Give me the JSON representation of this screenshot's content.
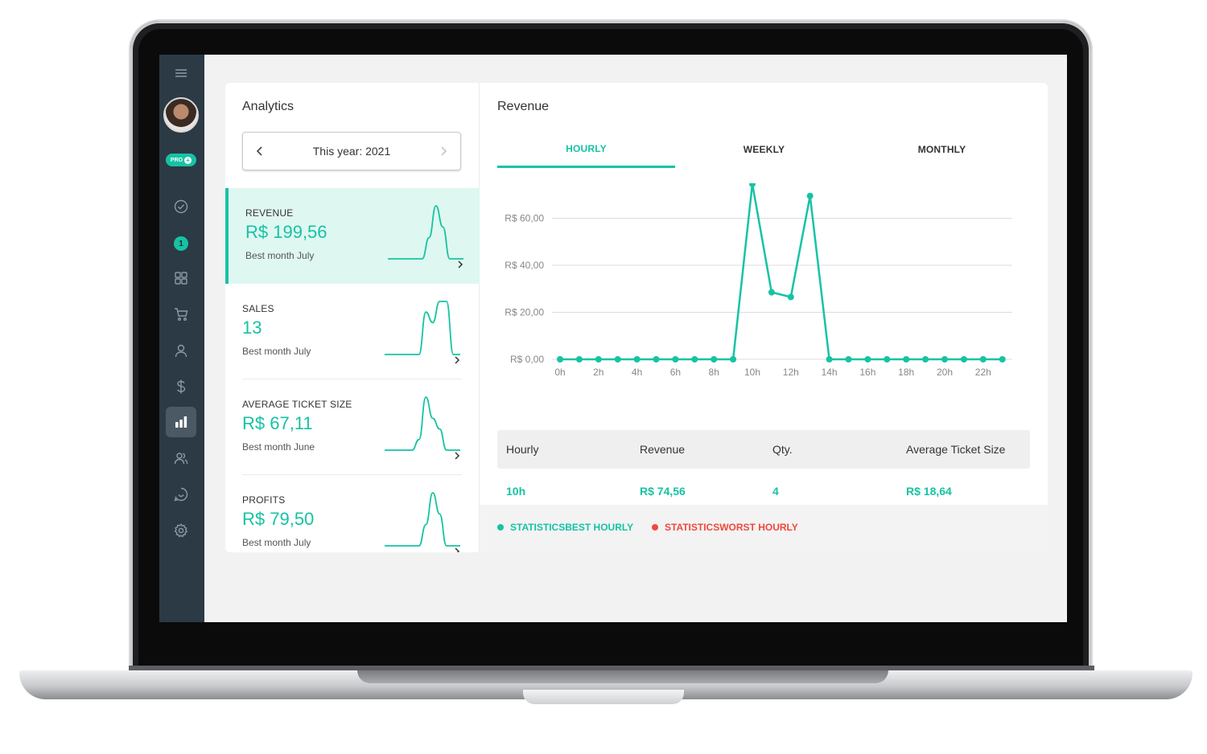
{
  "analytics": {
    "title": "Analytics",
    "period_label": "This year: 2021",
    "metrics": [
      {
        "label": "REVENUE",
        "value": "R$ 199,56",
        "sub": "Best month July",
        "spark": [
          0,
          0,
          0,
          0,
          0,
          0,
          0.4,
          1,
          0.6,
          0,
          0,
          0
        ]
      },
      {
        "label": "SALES",
        "value": "13",
        "sub": "Best month July",
        "spark": [
          0,
          0,
          0,
          0,
          0,
          0,
          0.8,
          0.6,
          1,
          1,
          0,
          0
        ]
      },
      {
        "label": "AVERAGE TICKET SIZE",
        "value": "R$ 67,11",
        "sub": "Best month June",
        "spark": [
          0,
          0,
          0,
          0,
          0,
          0.2,
          1,
          0.6,
          0.4,
          0,
          0,
          0
        ]
      },
      {
        "label": "PROFITS",
        "value": "R$ 79,50",
        "sub": "Best month July",
        "spark": [
          0,
          0,
          0,
          0,
          0,
          0,
          0.4,
          1,
          0.6,
          0,
          0,
          0
        ]
      }
    ]
  },
  "sidebar": {
    "pro_label": "PRO",
    "notification_count": "1"
  },
  "revenue": {
    "title": "Revenue",
    "tabs": [
      "HOURLY",
      "WEEKLY",
      "MONTHLY"
    ],
    "active_tab": "HOURLY"
  },
  "chart_data": {
    "type": "line",
    "x": [
      "0h",
      "1h",
      "2h",
      "3h",
      "4h",
      "5h",
      "6h",
      "7h",
      "8h",
      "9h",
      "10h",
      "11h",
      "12h",
      "13h",
      "14h",
      "15h",
      "16h",
      "17h",
      "18h",
      "19h",
      "20h",
      "21h",
      "22h",
      "23h"
    ],
    "x_tick_labels": [
      "0h",
      "2h",
      "4h",
      "6h",
      "8h",
      "10h",
      "12h",
      "14h",
      "16h",
      "18h",
      "20h",
      "22h"
    ],
    "series": [
      {
        "values": [
          0,
          0,
          0,
          0,
          0,
          0,
          0,
          0,
          0,
          0,
          74.56,
          28.5,
          26.5,
          69.5,
          0,
          0,
          0,
          0,
          0,
          0,
          0,
          0,
          0,
          0
        ]
      }
    ],
    "y_tick_labels": [
      "R$ 0,00",
      "R$ 20,00",
      "R$ 40,00",
      "R$ 60,00"
    ],
    "y_ticks": [
      0,
      20,
      40,
      60
    ],
    "ylim": [
      0,
      80
    ],
    "grid": true,
    "color": "#16c3a4"
  },
  "table": {
    "headers": [
      "Hourly",
      "Revenue",
      "Qty.",
      "Average Ticket Size"
    ],
    "rows": [
      [
        "10h",
        "R$ 74,56",
        "4",
        "R$ 18,64"
      ]
    ]
  },
  "legend": {
    "best": "STATISTICSBEST HOURLY",
    "worst": "STATISTICSWORST HOURLY",
    "best_color": "#16c3a4",
    "worst_color": "#f0483e"
  }
}
